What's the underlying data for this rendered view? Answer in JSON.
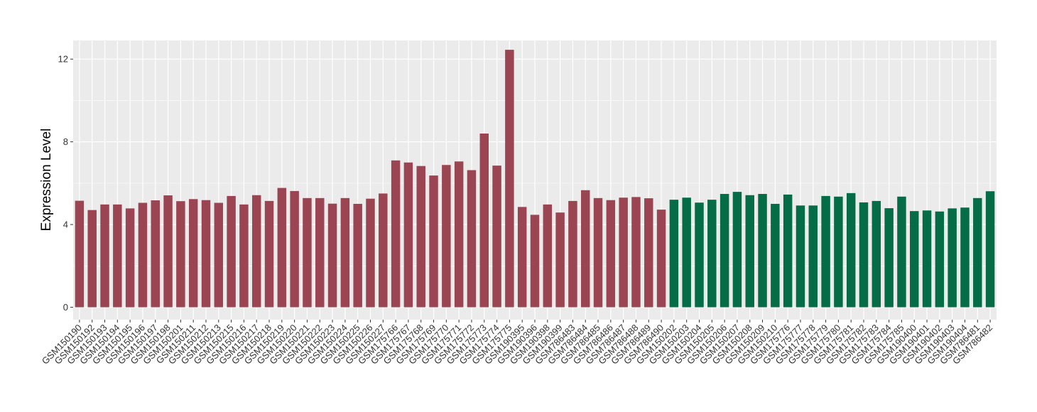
{
  "chart_data": {
    "type": "bar",
    "title": "",
    "xlabel": "",
    "ylabel": "Expression Level",
    "ylim": [
      -0.6,
      12.9
    ],
    "yticks": [
      0,
      4,
      8,
      12
    ],
    "grid": true,
    "legend": "none",
    "colors": {
      "group1": "#9b4452",
      "group2": "#046c47",
      "panel": "#ebebeb",
      "gridline": "#ffffff"
    },
    "categories": [
      "GSM150190",
      "GSM150192",
      "GSM150193",
      "GSM150194",
      "GSM150195",
      "GSM150196",
      "GSM150197",
      "GSM150198",
      "GSM150201",
      "GSM150211",
      "GSM150212",
      "GSM150213",
      "GSM150215",
      "GSM150216",
      "GSM150217",
      "GSM150218",
      "GSM150219",
      "GSM150220",
      "GSM150221",
      "GSM150222",
      "GSM150223",
      "GSM150224",
      "GSM150225",
      "GSM150226",
      "GSM150227",
      "GSM175766",
      "GSM175767",
      "GSM175768",
      "GSM175769",
      "GSM175770",
      "GSM175771",
      "GSM175772",
      "GSM175773",
      "GSM175774",
      "GSM175775",
      "GSM190395",
      "GSM190396",
      "GSM190398",
      "GSM190399",
      "GSM786483",
      "GSM786484",
      "GSM786485",
      "GSM786486",
      "GSM786487",
      "GSM786488",
      "GSM786489",
      "GSM786490",
      "GSM150202",
      "GSM150203",
      "GSM150204",
      "GSM150205",
      "GSM150206",
      "GSM150207",
      "GSM150208",
      "GSM150209",
      "GSM150210",
      "GSM175776",
      "GSM175777",
      "GSM175778",
      "GSM175779",
      "GSM175780",
      "GSM175781",
      "GSM175782",
      "GSM175783",
      "GSM175784",
      "GSM175785",
      "GSM190400",
      "GSM190401",
      "GSM190402",
      "GSM190403",
      "GSM190404",
      "GSM786481",
      "GSM786482"
    ],
    "values": [
      5.15,
      4.7,
      4.97,
      4.97,
      4.78,
      5.05,
      5.17,
      5.41,
      5.13,
      5.23,
      5.18,
      5.05,
      5.38,
      4.97,
      5.42,
      5.14,
      5.77,
      5.62,
      5.28,
      5.28,
      5.01,
      5.28,
      5.0,
      5.25,
      5.5,
      7.1,
      7.0,
      6.83,
      6.37,
      6.88,
      7.05,
      6.63,
      8.4,
      6.85,
      12.45,
      4.85,
      4.47,
      4.97,
      4.58,
      5.14,
      5.66,
      5.28,
      5.18,
      5.3,
      5.33,
      5.27,
      4.72,
      5.2,
      5.3,
      5.06,
      5.2,
      5.48,
      5.58,
      5.42,
      5.48,
      5.0,
      5.45,
      4.92,
      4.92,
      5.38,
      5.35,
      5.52,
      5.07,
      5.14,
      4.79,
      5.35,
      4.65,
      4.68,
      4.63,
      4.78,
      4.82,
      5.28,
      5.61
    ],
    "groups": [
      1,
      1,
      1,
      1,
      1,
      1,
      1,
      1,
      1,
      1,
      1,
      1,
      1,
      1,
      1,
      1,
      1,
      1,
      1,
      1,
      1,
      1,
      1,
      1,
      1,
      1,
      1,
      1,
      1,
      1,
      1,
      1,
      1,
      1,
      1,
      1,
      1,
      1,
      1,
      1,
      1,
      1,
      1,
      1,
      1,
      1,
      1,
      2,
      2,
      2,
      2,
      2,
      2,
      2,
      2,
      2,
      2,
      2,
      2,
      2,
      2,
      2,
      2,
      2,
      2,
      2,
      2,
      2,
      2,
      2,
      2,
      2,
      2
    ]
  }
}
